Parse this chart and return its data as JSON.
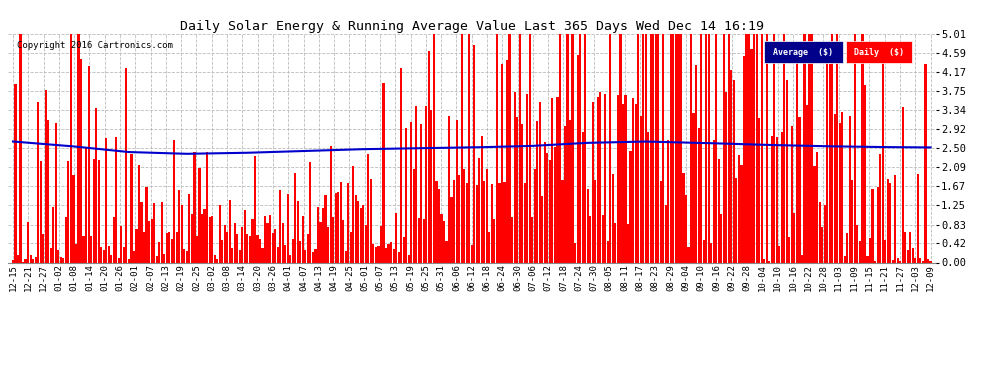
{
  "title": "Daily Solar Energy & Running Average Value Last 365 Days Wed Dec 14 16:19",
  "copyright": "Copyright 2016 Cartronics.com",
  "ylabel_right": [
    "0.00",
    "0.42",
    "0.83",
    "1.25",
    "1.67",
    "2.09",
    "2.50",
    "2.92",
    "3.34",
    "3.75",
    "4.17",
    "4.59",
    "5.01"
  ],
  "ylim": [
    0,
    5.01
  ],
  "yticks": [
    0.0,
    0.42,
    0.83,
    1.25,
    1.67,
    2.09,
    2.5,
    2.92,
    3.34,
    3.75,
    4.17,
    4.59,
    5.01
  ],
  "bar_color": "#FF0000",
  "avg_color": "#0000CC",
  "bg_color": "#FFFFFF",
  "plot_bg": "#FFFFFF",
  "grid_color": "#BBBBBB",
  "legend_avg_bg": "#00008B",
  "legend_daily_bg": "#CC0000",
  "n_bars": 365,
  "x_tick_labels": [
    "12-15",
    "12-21",
    "12-27",
    "01-02",
    "01-08",
    "01-14",
    "01-20",
    "01-26",
    "02-01",
    "02-07",
    "02-13",
    "02-19",
    "02-25",
    "03-02",
    "03-08",
    "03-14",
    "03-20",
    "03-26",
    "04-01",
    "04-07",
    "04-13",
    "04-19",
    "04-25",
    "05-01",
    "05-07",
    "05-13",
    "05-19",
    "05-25",
    "05-31",
    "06-06",
    "06-12",
    "06-18",
    "06-24",
    "06-30",
    "07-06",
    "07-12",
    "07-18",
    "07-24",
    "07-30",
    "08-05",
    "08-11",
    "08-17",
    "08-23",
    "08-29",
    "09-04",
    "09-10",
    "09-16",
    "09-22",
    "09-28",
    "10-04",
    "10-10",
    "10-16",
    "10-22",
    "10-28",
    "11-03",
    "11-09",
    "11-15",
    "11-21",
    "11-27",
    "12-03",
    "12-09"
  ]
}
